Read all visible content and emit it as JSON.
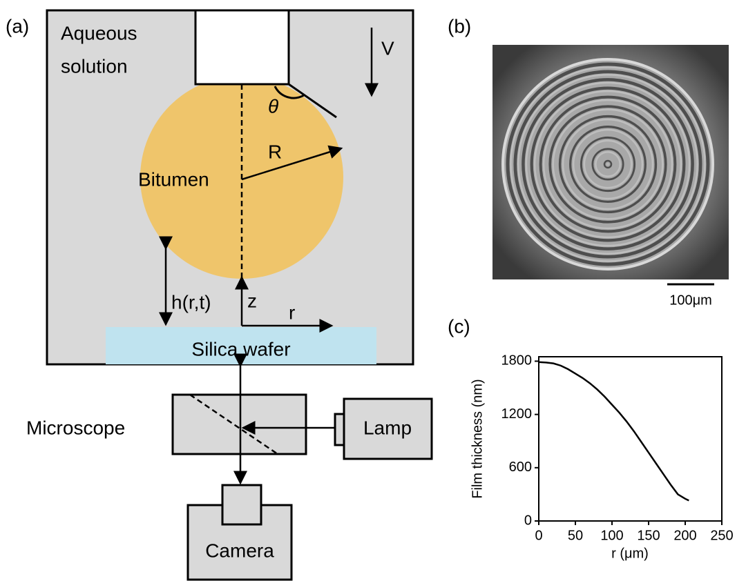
{
  "diagram": {
    "panel_label": "(a)",
    "medium_line1": "Aqueous",
    "medium_line2": "solution",
    "velocity": "V",
    "angle": "θ",
    "radius": "R",
    "drop": "Bitumen",
    "gap": "h(r,t)",
    "z_axis": "z",
    "r_axis": "r",
    "substrate": "Silica wafer",
    "microscope": "Microscope",
    "lamp": "Lamp",
    "camera": "Camera"
  },
  "image": {
    "panel_label": "(b)",
    "scale_bar": "100μm"
  },
  "chart_data": {
    "type": "line",
    "panel_label": "(c)",
    "xlabel": "r (μm)",
    "ylabel": "Film thickness (nm)",
    "x": [
      0,
      10,
      20,
      30,
      40,
      50,
      60,
      70,
      80,
      90,
      100,
      110,
      120,
      130,
      140,
      150,
      160,
      170,
      180,
      190,
      200,
      205
    ],
    "values": [
      1790,
      1785,
      1775,
      1750,
      1710,
      1660,
      1610,
      1550,
      1480,
      1400,
      1310,
      1220,
      1120,
      1010,
      890,
      770,
      650,
      530,
      410,
      300,
      250,
      230
    ],
    "color": "#000000",
    "xlim": [
      0,
      250
    ],
    "ylim": [
      0,
      1850
    ],
    "xticks": [
      0,
      50,
      100,
      150,
      200,
      250
    ],
    "yticks": [
      0,
      600,
      1200,
      1800
    ]
  }
}
